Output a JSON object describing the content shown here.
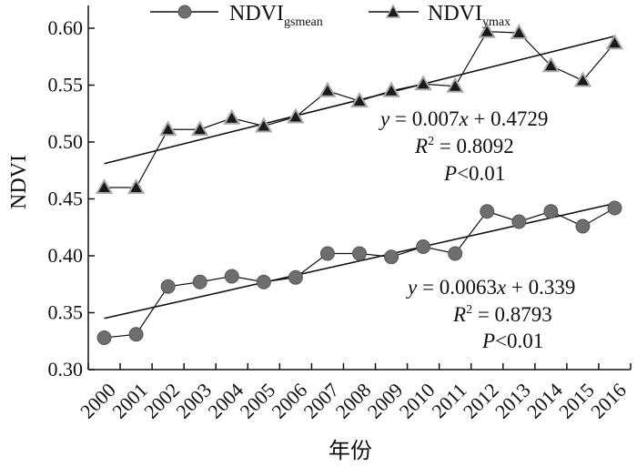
{
  "chart_data": {
    "type": "line",
    "title": "",
    "xlabel": "年份",
    "ylabel": "NDVI",
    "ylim": [
      0.3,
      0.62
    ],
    "yticks": [
      "0.30",
      "0.35",
      "0.40",
      "0.45",
      "0.50",
      "0.55",
      "0.60"
    ],
    "categories": [
      "2000",
      "2001",
      "2002",
      "2003",
      "2004",
      "2005",
      "2006",
      "2007",
      "2008",
      "2009",
      "2010",
      "2011",
      "2012",
      "2013",
      "2014",
      "2015",
      "2016"
    ],
    "grid": false,
    "legend_position": "top",
    "series": [
      {
        "name": "NDVI",
        "subscript": "gsmean",
        "marker": "circle",
        "values": [
          0.328,
          0.331,
          0.373,
          0.377,
          0.382,
          0.377,
          0.381,
          0.402,
          0.402,
          0.399,
          0.408,
          0.402,
          0.439,
          0.43,
          0.439,
          0.426,
          0.442
        ],
        "trend_start": 0.345,
        "trend_end": 0.446,
        "equation": {
          "y": "y",
          "eq_rest": " = 0.0063",
          "x": "x",
          "eq_tail": " + 0.339",
          "r": "R",
          "r_sup": "2",
          "r_rest": " = 0.8793",
          "p": "P",
          "p_rest": "<0.01"
        }
      },
      {
        "name": "NDVI",
        "subscript": "ymax",
        "marker": "triangle",
        "values": [
          0.46,
          0.46,
          0.511,
          0.511,
          0.521,
          0.514,
          0.522,
          0.545,
          0.536,
          0.545,
          0.551,
          0.549,
          0.597,
          0.596,
          0.567,
          0.554,
          0.587
        ],
        "trend_start": 0.481,
        "trend_end": 0.593,
        "equation": {
          "y": "y",
          "eq_rest": " = 0.007",
          "x": "x",
          "eq_tail": " + 0.4729",
          "r": "R",
          "r_sup": "2",
          "r_rest": " = 0.8092",
          "p": "P",
          "p_rest": "<0.01"
        }
      }
    ]
  },
  "colors": {
    "circle_fill": "#6e6e6e",
    "triangle_fill": "#1a1a1a",
    "triangle_stroke": "#a8a8a8",
    "line": "#111111"
  }
}
